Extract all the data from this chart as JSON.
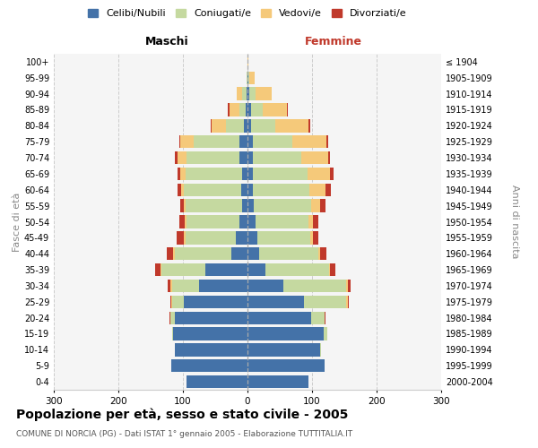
{
  "age_groups": [
    "0-4",
    "5-9",
    "10-14",
    "15-19",
    "20-24",
    "25-29",
    "30-34",
    "35-39",
    "40-44",
    "45-49",
    "50-54",
    "55-59",
    "60-64",
    "65-69",
    "70-74",
    "75-79",
    "80-84",
    "85-89",
    "90-94",
    "95-99",
    "100+"
  ],
  "birth_years": [
    "2000-2004",
    "1995-1999",
    "1990-1994",
    "1985-1989",
    "1980-1984",
    "1975-1979",
    "1970-1974",
    "1965-1969",
    "1960-1964",
    "1955-1959",
    "1950-1954",
    "1945-1949",
    "1940-1944",
    "1935-1939",
    "1930-1934",
    "1925-1929",
    "1920-1924",
    "1915-1919",
    "1910-1914",
    "1905-1909",
    "≤ 1904"
  ],
  "males": {
    "celibe": [
      95,
      118,
      112,
      115,
      112,
      98,
      75,
      65,
      25,
      18,
      12,
      8,
      10,
      8,
      12,
      12,
      5,
      3,
      2,
      0,
      0
    ],
    "coniugato": [
      0,
      0,
      0,
      2,
      8,
      18,
      42,
      68,
      88,
      78,
      82,
      88,
      88,
      88,
      82,
      72,
      28,
      10,
      6,
      1,
      0
    ],
    "vedovo": [
      0,
      0,
      0,
      0,
      0,
      2,
      2,
      2,
      2,
      2,
      3,
      3,
      5,
      8,
      15,
      20,
      22,
      15,
      8,
      1,
      0
    ],
    "divorziato": [
      0,
      0,
      0,
      0,
      1,
      2,
      5,
      8,
      10,
      12,
      8,
      5,
      5,
      5,
      3,
      2,
      2,
      2,
      0,
      0,
      0
    ]
  },
  "females": {
    "nubile": [
      95,
      120,
      112,
      118,
      98,
      88,
      55,
      28,
      18,
      15,
      12,
      10,
      8,
      8,
      8,
      8,
      5,
      5,
      3,
      1,
      0
    ],
    "coniugata": [
      0,
      0,
      2,
      5,
      22,
      65,
      98,
      98,
      92,
      82,
      82,
      88,
      88,
      85,
      75,
      62,
      38,
      18,
      10,
      2,
      0
    ],
    "vedova": [
      0,
      0,
      0,
      0,
      0,
      2,
      2,
      2,
      2,
      5,
      8,
      15,
      25,
      35,
      42,
      52,
      52,
      38,
      25,
      8,
      1
    ],
    "divorziata": [
      0,
      0,
      0,
      0,
      1,
      2,
      5,
      8,
      10,
      8,
      8,
      8,
      8,
      5,
      3,
      3,
      2,
      2,
      0,
      0,
      0
    ]
  },
  "colors": {
    "celibe": "#4472a8",
    "coniugato": "#c5d9a0",
    "vedovo": "#f5c97a",
    "divorziato": "#c0392b"
  },
  "title": "Popolazione per età, sesso e stato civile - 2005",
  "subtitle": "COMUNE DI NORCIA (PG) - Dati ISTAT 1° gennaio 2005 - Elaborazione TUTTITALIA.IT",
  "xlabel_left": "Maschi",
  "xlabel_right": "Femmine",
  "ylabel_left": "Fasce di età",
  "ylabel_right": "Anni di nascita",
  "xlim": 300,
  "legend_labels": [
    "Celibi/Nubili",
    "Coniugati/e",
    "Vedovi/e",
    "Divorziati/e"
  ]
}
